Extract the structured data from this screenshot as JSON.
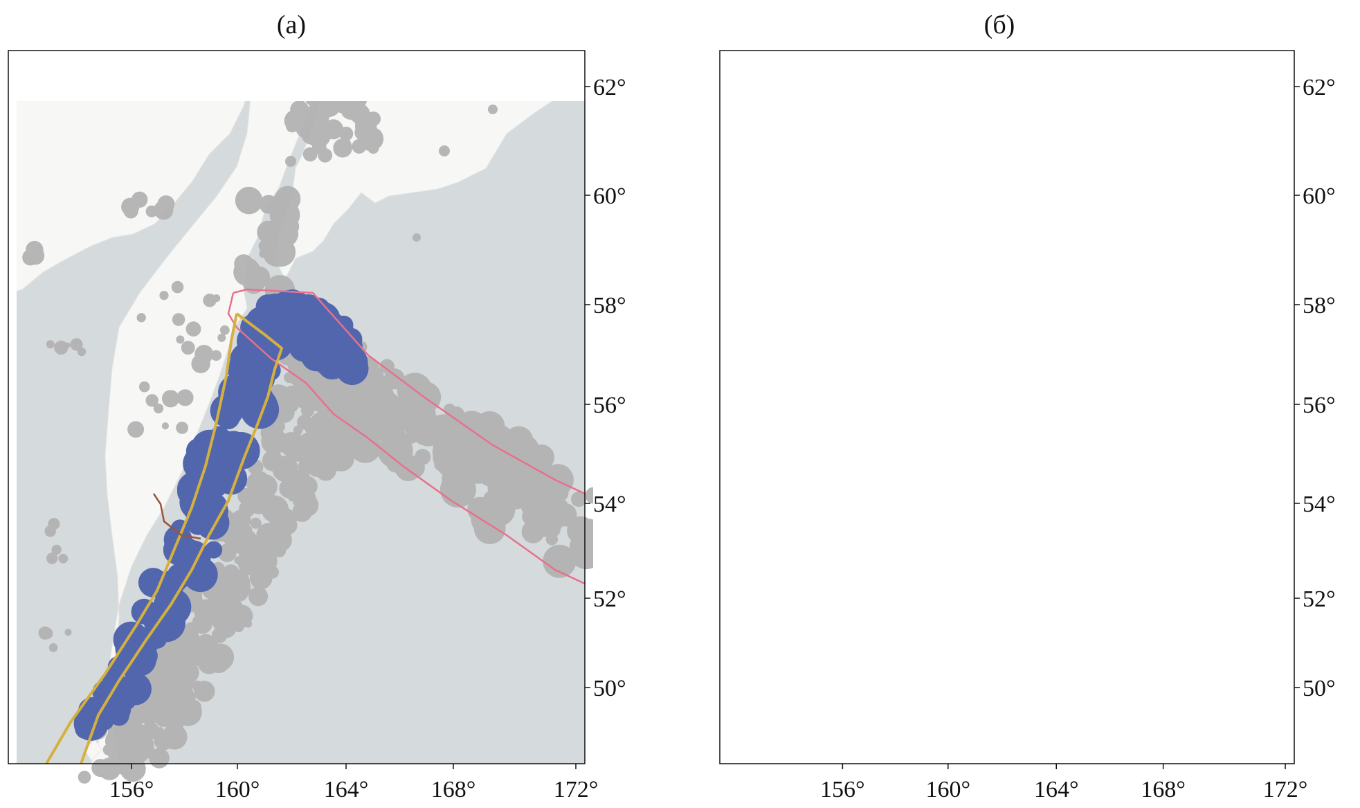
{
  "panels": [
    {
      "id": "a",
      "title": "(а)"
    },
    {
      "id": "b",
      "title": "(б)"
    }
  ],
  "axes": {
    "lon_ticks": [
      "156°",
      "160°",
      "164°",
      "168°",
      "172°"
    ],
    "lat_ticks": [
      "62°",
      "60°",
      "58°",
      "56°",
      "54°",
      "52°",
      "50°"
    ]
  },
  "colors": {
    "sea": "#d5dadd",
    "land": "#f7f7f5",
    "background_events": "#b3b3b3",
    "main_cluster": "#5266ae",
    "plate_boundary": "#e8708c",
    "zone_outline": "#d4b13e",
    "fault_line": "#9a5438",
    "cluster_purple": "#a66cb3",
    "cluster_salmon": "#d9675a",
    "cluster_red": "#e0381a"
  }
}
